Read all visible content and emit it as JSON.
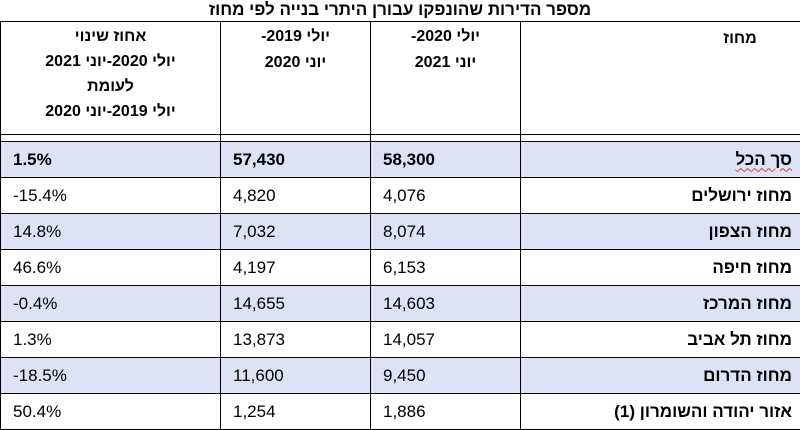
{
  "title": "מספר הדירות שהונפקו עבורן היתרי בנייה לפי מחוז",
  "headers": {
    "district": "מחוז",
    "period_2021": [
      "יולי 2020-",
      "יוני 2021"
    ],
    "period_2020": [
      "יולי 2019-",
      "יוני 2020"
    ],
    "pct_change": [
      "אחוז שינוי",
      "יולי 2020-יוני 2021",
      "לעומת",
      "יולי 2019-יוני 2020"
    ]
  },
  "rows": [
    {
      "district": "סך הכל",
      "period_2021": "58,300",
      "period_2020": "57,430",
      "pct_change": "1.5%"
    },
    {
      "district": "מחוז ירושלים",
      "period_2021": "4,076",
      "period_2020": "4,820",
      "pct_change": "-15.4%"
    },
    {
      "district": "מחוז הצפון",
      "period_2021": "8,074",
      "period_2020": "7,032",
      "pct_change": "14.8%"
    },
    {
      "district": "מחוז חיפה",
      "period_2021": "6,153",
      "period_2020": "4,197",
      "pct_change": "46.6%"
    },
    {
      "district": "מחוז המרכז",
      "period_2021": "14,603",
      "period_2020": "14,655",
      "pct_change": "-0.4%"
    },
    {
      "district": "מחוז תל אביב",
      "period_2021": "14,057",
      "period_2020": "13,873",
      "pct_change": "1.3%"
    },
    {
      "district": "מחוז הדרום",
      "period_2021": "9,450",
      "period_2020": "11,600",
      "pct_change": "-18.5%"
    },
    {
      "district": "אזור יהודה והשומרון (1)",
      "period_2021": "1,886",
      "period_2020": "1,254",
      "pct_change": "50.4%"
    }
  ],
  "colors": {
    "shaded_row": "#dce3f5",
    "spellcheck_underline": "#d23b3b"
  }
}
